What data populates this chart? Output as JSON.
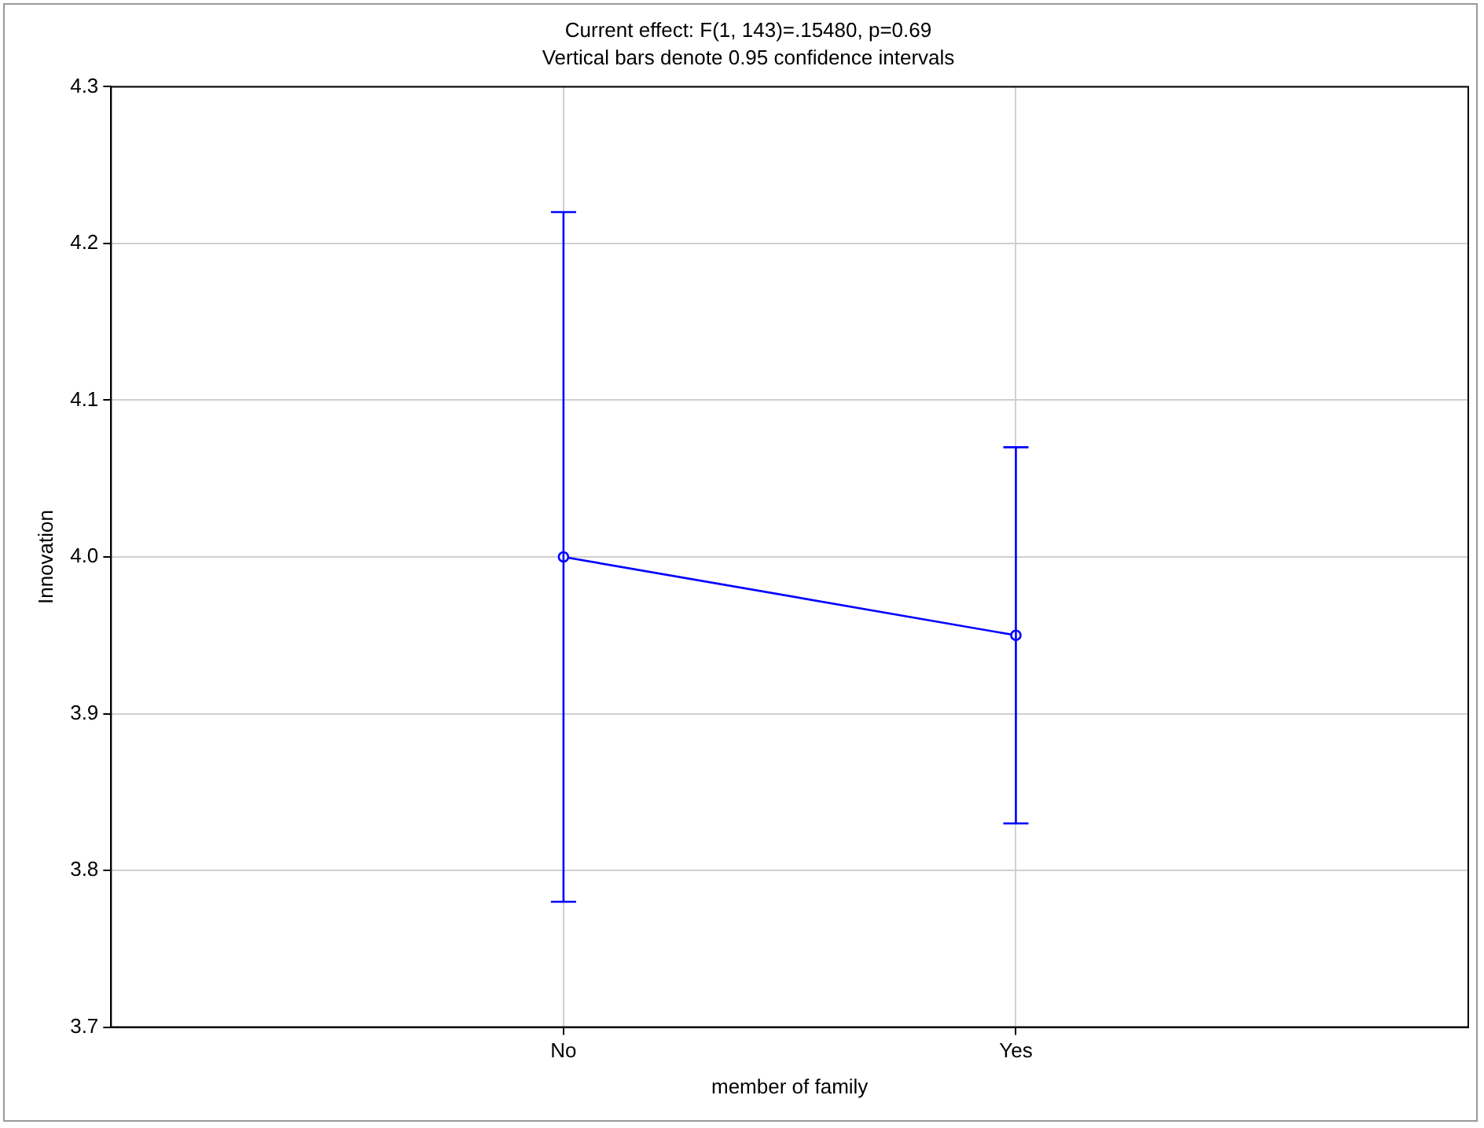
{
  "chart_data": {
    "type": "line",
    "title": "Current effect: F(1, 143)=.15480, p=0.69",
    "subtitle": "Vertical bars denote 0.95 confidence intervals",
    "xlabel": "member of family",
    "ylabel": "Innovation",
    "categories": [
      "No",
      "Yes"
    ],
    "series": [
      {
        "color": "#0000ff",
        "values": [
          4.0,
          3.95
        ],
        "errors": [
          [
            3.78,
            4.22
          ],
          [
            3.83,
            4.07
          ]
        ]
      }
    ],
    "ylim": [
      3.7,
      4.3
    ],
    "yticks": [
      3.7,
      3.8,
      3.9,
      {
        "value": 4,
        "label": "4.0"
      },
      4.1,
      4.2,
      4.3
    ],
    "grid": true,
    "marker": "circle",
    "line_style": "solid"
  }
}
